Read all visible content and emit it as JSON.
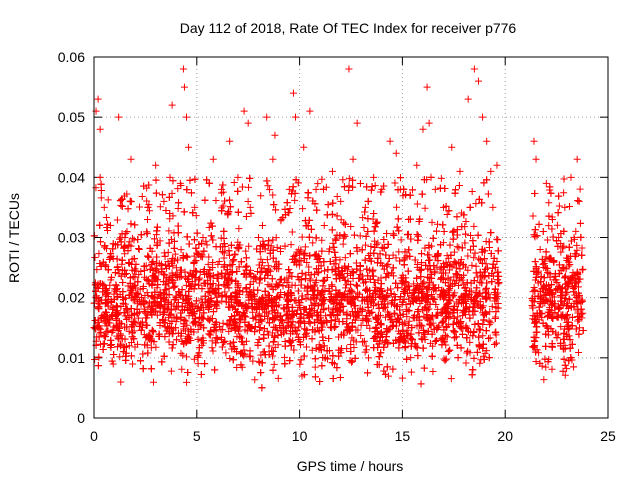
{
  "chart_data": {
    "type": "scatter",
    "title": "Day 112 of 2018, Rate Of TEC Index for receiver p776",
    "xlabel": "GPS time / hours",
    "ylabel": "ROTI / TECUs",
    "xlim": [
      0,
      25
    ],
    "ylim": [
      0,
      0.06
    ],
    "x_ticks": [
      "0",
      "5",
      "10",
      "15",
      "20",
      "25"
    ],
    "y_ticks": [
      "0",
      "0.01",
      "0.02",
      "0.03",
      "0.04",
      "0.05",
      "0.06"
    ],
    "grid": true,
    "marker": "+",
    "color": "#ff0000",
    "gaps": [
      [
        19.7,
        21.3
      ]
    ],
    "series": [
      {
        "x": [
          0.1,
          0.2,
          0.3,
          0.3,
          0.5,
          0.8,
          1.2,
          1.5,
          1.8,
          2.2,
          2.6,
          3.0,
          3.4,
          3.8,
          4.2,
          4.35,
          4.4,
          4.5,
          4.6,
          4.9,
          5.3,
          5.8,
          6.2,
          6.6,
          7.0,
          7.3,
          7.5,
          7.6,
          8.0,
          8.4,
          8.7,
          8.8,
          9.1,
          9.5,
          9.7,
          9.8,
          10.2,
          10.5,
          10.8,
          11.2,
          11.6,
          12.0,
          12.4,
          12.6,
          12.8,
          13.2,
          13.6,
          14.0,
          14.4,
          14.7,
          14.9,
          15.3,
          15.7,
          16.0,
          16.2,
          16.3,
          16.6,
          17.0,
          17.4,
          17.8,
          18.2,
          18.5,
          18.7,
          18.9,
          19.1,
          19.3,
          19.4,
          19.6,
          21.4,
          21.5,
          21.7,
          22.0,
          22.3,
          22.6,
          22.9,
          23.2,
          23.5,
          23.6
        ],
        "y": [
          0.051,
          0.053,
          0.048,
          0.04,
          0.035,
          0.032,
          0.05,
          0.03,
          0.043,
          0.028,
          0.033,
          0.042,
          0.036,
          0.052,
          0.039,
          0.058,
          0.055,
          0.05,
          0.045,
          0.035,
          0.03,
          0.043,
          0.038,
          0.046,
          0.04,
          0.051,
          0.049,
          0.035,
          0.03,
          0.05,
          0.043,
          0.047,
          0.033,
          0.038,
          0.054,
          0.05,
          0.045,
          0.051,
          0.038,
          0.032,
          0.041,
          0.036,
          0.058,
          0.043,
          0.049,
          0.035,
          0.04,
          0.038,
          0.046,
          0.044,
          0.038,
          0.033,
          0.042,
          0.048,
          0.055,
          0.049,
          0.038,
          0.035,
          0.045,
          0.041,
          0.053,
          0.058,
          0.056,
          0.05,
          0.046,
          0.041,
          0.035,
          0.042,
          0.046,
          0.043,
          0.028,
          0.039,
          0.033,
          0.03,
          0.035,
          0.04,
          0.043,
          0.036
        ]
      }
    ]
  }
}
